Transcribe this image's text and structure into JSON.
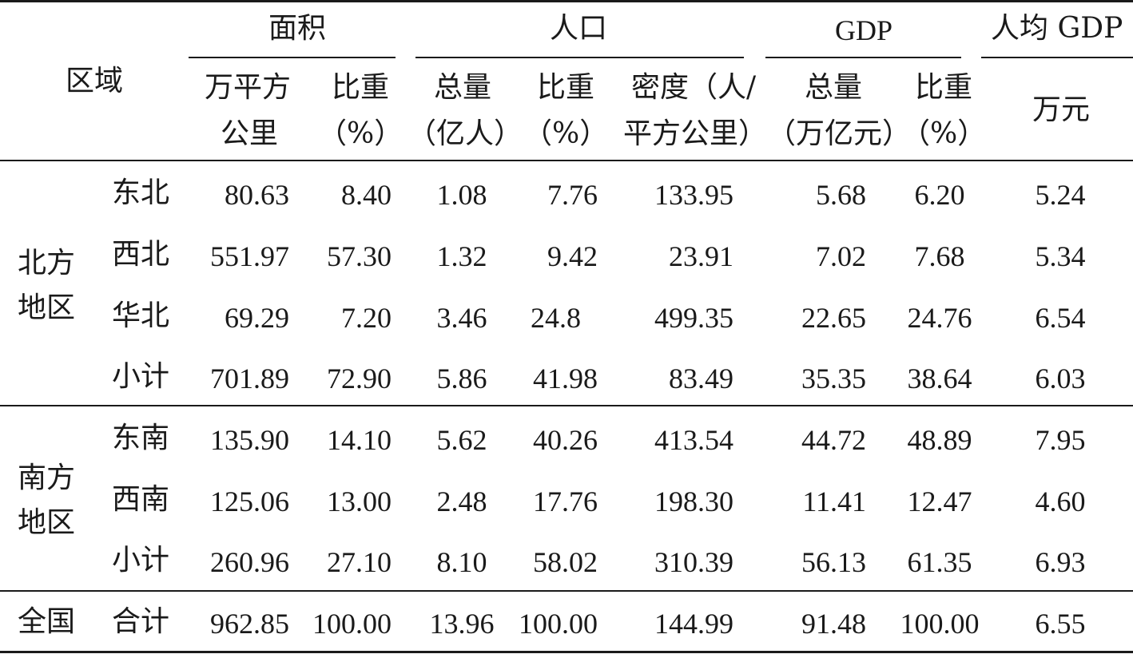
{
  "header": {
    "region": "区域",
    "groups": {
      "area": "面积",
      "population": "人口",
      "gdp": "GDP",
      "gdp_per_capita": "人均 GDP"
    },
    "sub": {
      "area_total": [
        "万平方",
        "公里"
      ],
      "area_share": [
        "比重",
        "（%）"
      ],
      "pop_total": [
        "总量",
        "（亿人）"
      ],
      "pop_share": [
        "比重",
        "（%）"
      ],
      "pop_density": [
        "密度（人/",
        "平方公里）"
      ],
      "gdp_total": [
        "总量",
        "（万亿元）"
      ],
      "gdp_share": [
        "比重",
        "（%）"
      ],
      "gdp_pc_unit": "万元"
    }
  },
  "groups": [
    {
      "name": [
        "北方",
        "地区"
      ],
      "rows": [
        {
          "region": "东北",
          "area": "80.63",
          "area_share": "8.40",
          "pop": "1.08",
          "pop_share": "7.76",
          "density": "133.95",
          "gdp": "5.68",
          "gdp_share": "6.20",
          "gdp_pc": "5.24"
        },
        {
          "region": "西北",
          "area": "551.97",
          "area_share": "57.30",
          "pop": "1.32",
          "pop_share": "9.42",
          "density": "23.91",
          "gdp": "7.02",
          "gdp_share": "7.68",
          "gdp_pc": "5.34"
        },
        {
          "region": "华北",
          "area": "69.29",
          "area_share": "7.20",
          "pop": "3.46",
          "pop_share": "24.8",
          "density": "499.35",
          "gdp": "22.65",
          "gdp_share": "24.76",
          "gdp_pc": "6.54"
        },
        {
          "region": "小计",
          "area": "701.89",
          "area_share": "72.90",
          "pop": "5.86",
          "pop_share": "41.98",
          "density": "83.49",
          "gdp": "35.35",
          "gdp_share": "38.64",
          "gdp_pc": "6.03"
        }
      ]
    },
    {
      "name": [
        "南方",
        "地区"
      ],
      "rows": [
        {
          "region": "东南",
          "area": "135.90",
          "area_share": "14.10",
          "pop": "5.62",
          "pop_share": "40.26",
          "density": "413.54",
          "gdp": "44.72",
          "gdp_share": "48.89",
          "gdp_pc": "7.95"
        },
        {
          "region": "西南",
          "area": "125.06",
          "area_share": "13.00",
          "pop": "2.48",
          "pop_share": "17.76",
          "density": "198.30",
          "gdp": "11.41",
          "gdp_share": "12.47",
          "gdp_pc": "4.60"
        },
        {
          "region": "小计",
          "area": "260.96",
          "area_share": "27.10",
          "pop": "8.10",
          "pop_share": "58.02",
          "density": "310.39",
          "gdp": "56.13",
          "gdp_share": "61.35",
          "gdp_pc": "6.93"
        }
      ]
    },
    {
      "name": [
        "全国"
      ],
      "rows": [
        {
          "region": "合计",
          "area": "962.85",
          "area_share": "100.00",
          "pop": "13.96",
          "pop_share": "100.00",
          "density": "144.99",
          "gdp": "91.48",
          "gdp_share": "100.00",
          "gdp_pc": "6.55"
        }
      ]
    }
  ]
}
